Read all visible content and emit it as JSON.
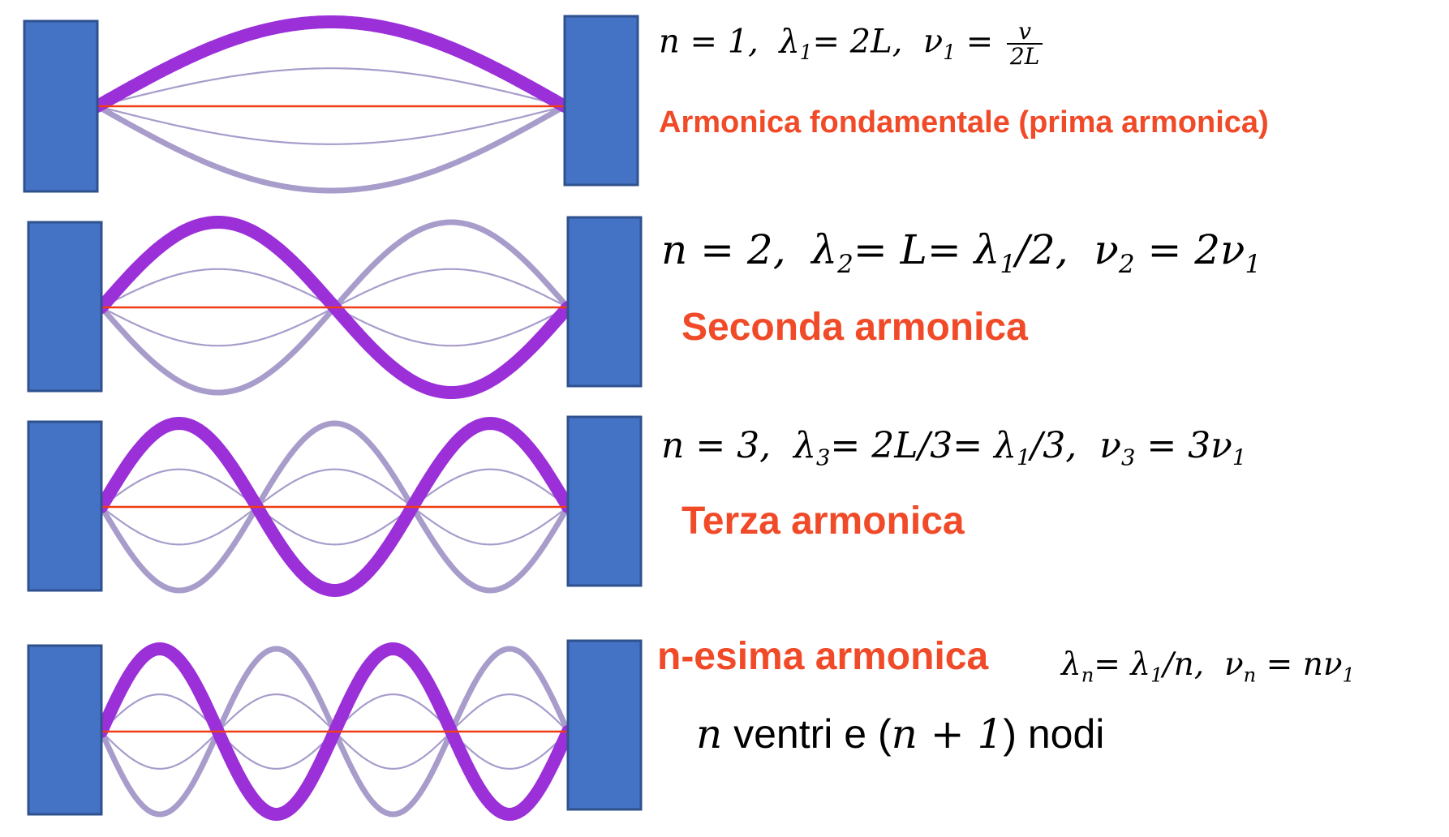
{
  "colors": {
    "block_fill": "#4472C4",
    "block_stroke": "#2F528F",
    "string_line": "#F03C14",
    "wave_strong": "#9B30D9",
    "wave_faint": "#A89CCB",
    "title": "#F04A28"
  },
  "harmonics": [
    {
      "n": 1,
      "title": "Armonica fondamentale (prima armonica)",
      "eq": {
        "n": "n = 1,",
        "lambda_sym": "λ",
        "lambda_sub": "1",
        "lambda_val": "= 2L,",
        "nu_sym": "ν",
        "nu_sub": "1",
        "nu_eq": "=",
        "frac_num": "v",
        "frac_den": "2L"
      }
    },
    {
      "n": 2,
      "title": "Seconda armonica",
      "eq": {
        "n": "n = 2,",
        "lambda_sym": "λ",
        "lambda_sub": "2",
        "lambda_val": "= L= ",
        "lambda1_sym": "λ",
        "lambda1_sub": "1",
        "lambda1_rest": "/2,",
        "nu_sym": "ν",
        "nu_sub": "2",
        "nu_val": "= 2ν",
        "nu1_sub": "1"
      }
    },
    {
      "n": 3,
      "title": "Terza armonica",
      "eq": {
        "n": "n = 3,",
        "lambda_sym": "λ",
        "lambda_sub": "3",
        "lambda_val": "= 2L/3= ",
        "lambda1_sym": "λ",
        "lambda1_sub": "1",
        "lambda1_rest": "/3,",
        "nu_sym": "ν",
        "nu_sub": "3",
        "nu_val": "= 3ν",
        "nu1_sub": "1"
      }
    },
    {
      "n": 4,
      "title": "n-esima armonica",
      "eq": {
        "lambda_sym": "λ",
        "lambda_sub": "n",
        "lambda_val": "= ",
        "lambda1_sym": "λ",
        "lambda1_sub": "1",
        "lambda1_rest": "/n,",
        "nu_sym": "ν",
        "nu_sub": "n",
        "nu_val": "= nν",
        "nu1_sub": "1"
      },
      "note": {
        "var": "n",
        "text1": " ventri e ",
        "paren_open": "(",
        "expr": "n + 1",
        "paren_close": ")",
        "text2": " nodi"
      }
    }
  ]
}
